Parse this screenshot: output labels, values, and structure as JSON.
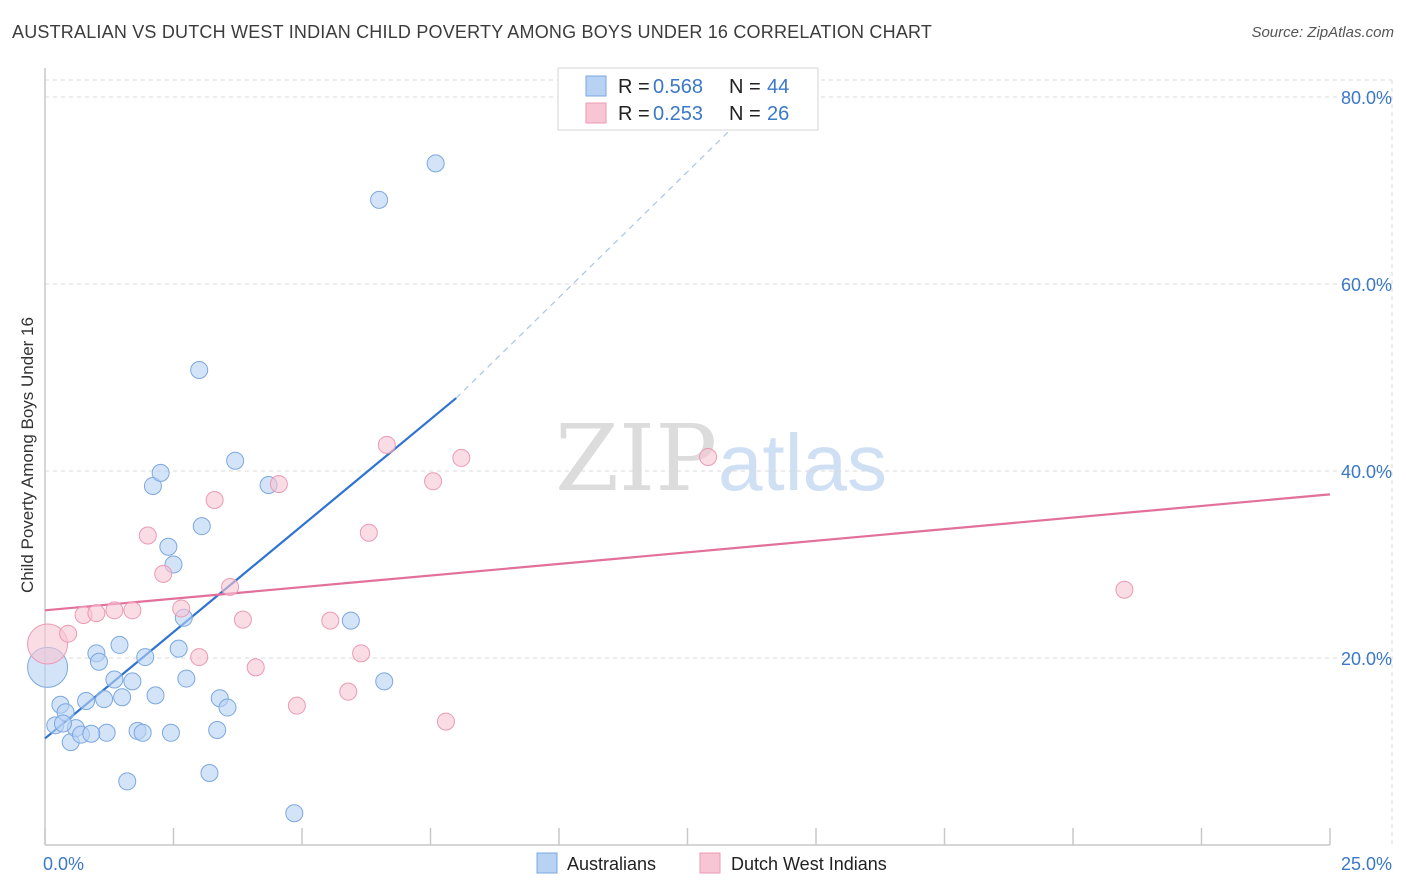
{
  "header": {
    "title": "AUSTRALIAN VS DUTCH WEST INDIAN CHILD POVERTY AMONG BOYS UNDER 16 CORRELATION CHART",
    "source": "Source: ZipAtlas.com"
  },
  "watermark": {
    "zip": "ZIP",
    "atlas": "atlas"
  },
  "colors": {
    "blue_fill": "#b7d2f3",
    "blue_stroke": "#7aa8e0",
    "blue_line": "#2f73d0",
    "pink_fill": "#f7c5d4",
    "pink_stroke": "#ec9ab4",
    "pink_line": "#e2709a",
    "tick_text": "#3b78c6",
    "grid": "#d8d8d8"
  },
  "legend": {
    "rows": [
      {
        "r_label": "R =",
        "r_value": "0.568",
        "n_label": "N =",
        "n_value": "44"
      },
      {
        "r_label": "R =",
        "r_value": "0.253",
        "n_label": "N =",
        "n_value": "26"
      }
    ]
  },
  "bottom_legend": {
    "items": [
      "Australians",
      "Dutch West Indians"
    ]
  },
  "chart_data": {
    "type": "scatter",
    "title": "AUSTRALIAN VS DUTCH WEST INDIAN CHILD POVERTY AMONG BOYS UNDER 16 CORRELATION CHART",
    "xlabel": "",
    "ylabel": "Child Poverty Among Boys Under 16",
    "xlim": [
      0,
      25
    ],
    "ylim": [
      0,
      80
    ],
    "x_tick_labels": [
      "0.0%",
      "25.0%"
    ],
    "y_tick_values": [
      20,
      40,
      60,
      80
    ],
    "y_tick_labels": [
      "20.0%",
      "40.0%",
      "60.0%",
      "80.0%"
    ],
    "grid": true,
    "series": [
      {
        "name": "Australians",
        "r": 0.568,
        "n": 44,
        "points": [
          {
            "x": 0.05,
            "y": 19.0,
            "big": true
          },
          {
            "x": 0.2,
            "y": 12.8
          },
          {
            "x": 0.3,
            "y": 15.0
          },
          {
            "x": 0.4,
            "y": 14.2
          },
          {
            "x": 0.5,
            "y": 11.0
          },
          {
            "x": 0.6,
            "y": 12.5
          },
          {
            "x": 0.7,
            "y": 11.8
          },
          {
            "x": 0.8,
            "y": 15.4
          },
          {
            "x": 1.0,
            "y": 20.5
          },
          {
            "x": 1.05,
            "y": 19.6
          },
          {
            "x": 1.15,
            "y": 15.6
          },
          {
            "x": 1.2,
            "y": 12.0
          },
          {
            "x": 1.35,
            "y": 17.7
          },
          {
            "x": 1.45,
            "y": 21.4
          },
          {
            "x": 1.5,
            "y": 15.8
          },
          {
            "x": 1.6,
            "y": 6.8
          },
          {
            "x": 1.7,
            "y": 17.5
          },
          {
            "x": 1.8,
            "y": 12.2
          },
          {
            "x": 1.9,
            "y": 12.0
          },
          {
            "x": 1.95,
            "y": 20.1
          },
          {
            "x": 2.1,
            "y": 38.4
          },
          {
            "x": 2.15,
            "y": 16.0
          },
          {
            "x": 2.25,
            "y": 39.8
          },
          {
            "x": 2.4,
            "y": 31.9
          },
          {
            "x": 2.45,
            "y": 12.0
          },
          {
            "x": 2.5,
            "y": 30.0
          },
          {
            "x": 2.6,
            "y": 21.0
          },
          {
            "x": 2.7,
            "y": 24.3
          },
          {
            "x": 2.75,
            "y": 17.8
          },
          {
            "x": 3.0,
            "y": 50.8
          },
          {
            "x": 3.05,
            "y": 34.1
          },
          {
            "x": 3.2,
            "y": 7.7
          },
          {
            "x": 3.35,
            "y": 12.3
          },
          {
            "x": 3.4,
            "y": 15.7
          },
          {
            "x": 3.55,
            "y": 14.7
          },
          {
            "x": 3.7,
            "y": 41.1
          },
          {
            "x": 4.35,
            "y": 38.5
          },
          {
            "x": 4.85,
            "y": 3.4
          },
          {
            "x": 5.95,
            "y": 24.0
          },
          {
            "x": 6.5,
            "y": 69.0
          },
          {
            "x": 6.6,
            "y": 17.5
          },
          {
            "x": 7.6,
            "y": 72.9
          },
          {
            "x": 0.9,
            "y": 11.9
          },
          {
            "x": 0.35,
            "y": 13.0
          }
        ],
        "trend": {
          "x0": 0.0,
          "y0": 11.4,
          "x1": 8.0,
          "y1": 47.8,
          "dash_x1": 13.8,
          "dash_y1": 79.0
        }
      },
      {
        "name": "Dutch West Indians",
        "r": 0.253,
        "n": 26,
        "points": [
          {
            "x": 0.05,
            "y": 21.5,
            "big": true
          },
          {
            "x": 0.45,
            "y": 22.6
          },
          {
            "x": 0.75,
            "y": 24.6
          },
          {
            "x": 1.0,
            "y": 24.8
          },
          {
            "x": 1.35,
            "y": 25.1
          },
          {
            "x": 1.7,
            "y": 25.1
          },
          {
            "x": 2.0,
            "y": 33.1
          },
          {
            "x": 2.3,
            "y": 29.0
          },
          {
            "x": 2.65,
            "y": 25.3
          },
          {
            "x": 3.0,
            "y": 20.1
          },
          {
            "x": 3.3,
            "y": 36.9
          },
          {
            "x": 3.6,
            "y": 27.6
          },
          {
            "x": 3.85,
            "y": 24.1
          },
          {
            "x": 4.1,
            "y": 19.0
          },
          {
            "x": 4.55,
            "y": 38.6
          },
          {
            "x": 4.9,
            "y": 14.9
          },
          {
            "x": 5.55,
            "y": 24.0
          },
          {
            "x": 5.9,
            "y": 16.4
          },
          {
            "x": 6.15,
            "y": 20.5
          },
          {
            "x": 6.3,
            "y": 33.4
          },
          {
            "x": 6.65,
            "y": 42.8
          },
          {
            "x": 7.55,
            "y": 38.9
          },
          {
            "x": 7.8,
            "y": 13.2
          },
          {
            "x": 8.1,
            "y": 41.4
          },
          {
            "x": 12.9,
            "y": 41.5
          },
          {
            "x": 21.0,
            "y": 27.3
          }
        ],
        "trend": {
          "x0": 0.0,
          "y0": 25.1,
          "x1": 25.0,
          "y1": 37.5
        }
      }
    ]
  }
}
